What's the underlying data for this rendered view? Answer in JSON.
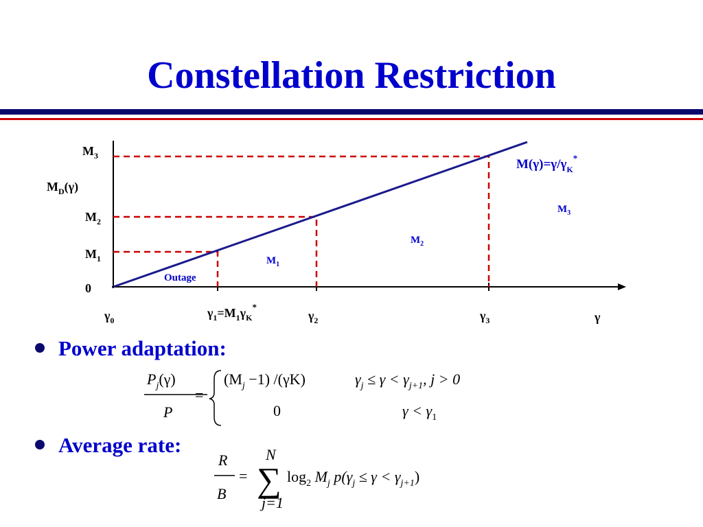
{
  "title": "Constellation Restriction",
  "diagram": {
    "y_labels": [
      [
        "M",
        "3"
      ],
      [
        "M",
        "D",
        "(γ)"
      ],
      [
        "M",
        "2"
      ],
      [
        "M",
        "1"
      ],
      [
        "0"
      ]
    ],
    "x_labels": [
      [
        "γ",
        "0"
      ],
      [
        "γ",
        "1",
        "=M",
        "1",
        "γ",
        "K",
        "*"
      ],
      [
        "γ",
        "2"
      ],
      [
        "γ",
        "3"
      ],
      [
        "γ"
      ]
    ],
    "line_label": [
      "M(γ)=γ/γ",
      "K",
      "*"
    ],
    "regions": [
      [
        "Outage"
      ],
      [
        "M",
        "1"
      ],
      [
        "M",
        "2"
      ],
      [
        "M",
        "3"
      ]
    ]
  },
  "bullets": [
    "Power adaptation:",
    "Average rate:"
  ],
  "formula1": {
    "lhs_num": [
      "P",
      "j",
      "(γ)"
    ],
    "lhs_den": "P",
    "eq": "=",
    "case1_expr": [
      "(M",
      "j",
      " −1) /(γK)"
    ],
    "case1_cond": [
      "γ",
      "j",
      " ≤ γ < γ",
      "j+1",
      ", j > 0"
    ],
    "case2_expr": "0",
    "case2_cond": [
      "γ < γ",
      "1"
    ]
  },
  "formula2": {
    "lhs_num": "R",
    "lhs_den": "B",
    "eq": "=",
    "sum": "∑",
    "sum_top": "N",
    "sum_bottom": "j=1",
    "body": [
      "log",
      "2",
      " M",
      "j",
      " p(γ",
      "j",
      " ≤ γ < γ",
      "j+1",
      ")"
    ]
  }
}
